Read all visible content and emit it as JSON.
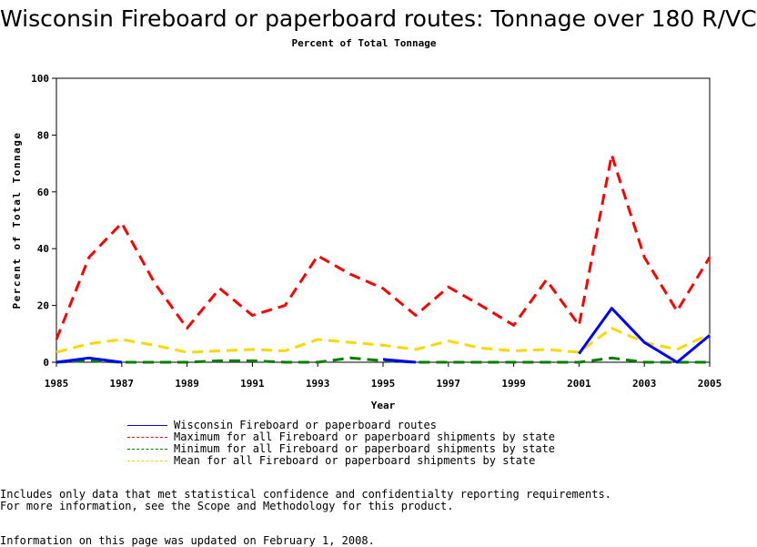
{
  "chart_data": {
    "type": "line",
    "title": "Wisconsin Fireboard or paperboard routes: Tonnage over 180 R/VC",
    "subtitle": "Percent of Total Tonnage",
    "xlabel": "Year",
    "ylabel": "Percent of Total Tonnage",
    "xlim": [
      1985,
      2005
    ],
    "ylim": [
      0,
      100
    ],
    "x_ticks": [
      "1985",
      "1987",
      "1989",
      "1991",
      "1993",
      "1995",
      "1997",
      "1999",
      "2001",
      "2003",
      "2005"
    ],
    "y_ticks": [
      "0",
      "20",
      "40",
      "60",
      "80",
      "100"
    ],
    "grid": false,
    "legend_position": "bottom",
    "x": [
      1985,
      1986,
      1987,
      1988,
      1989,
      1990,
      1991,
      1992,
      1993,
      1994,
      1995,
      1996,
      1997,
      1998,
      1999,
      2000,
      2001,
      2002,
      2003,
      2004,
      2005
    ],
    "series": [
      {
        "name": "Wisconsin Fireboard or paperboard routes",
        "color": "#0000ff",
        "style": "solid",
        "values": [
          0,
          1.5,
          0,
          null,
          null,
          null,
          null,
          null,
          null,
          null,
          1,
          0,
          null,
          null,
          null,
          null,
          3,
          19,
          7,
          0,
          9.5
        ]
      },
      {
        "name": "Maximum for all Fireboard or paperboard shipments by state",
        "color": "#ff0000",
        "style": "dashed",
        "values": [
          8,
          37,
          49,
          28,
          12,
          26,
          16.5,
          20,
          37.5,
          31,
          26,
          16.5,
          26.5,
          20,
          13,
          29,
          13,
          73,
          37,
          18,
          37
        ]
      },
      {
        "name": "Minimum for all Fireboard or paperboard shipments by state",
        "color": "#008000",
        "style": "dashed",
        "values": [
          0,
          0.5,
          0,
          0,
          0,
          0.5,
          0.5,
          0,
          0,
          1.5,
          0.5,
          0,
          0,
          0,
          0,
          0,
          0,
          1.5,
          0,
          0,
          0
        ]
      },
      {
        "name": "Mean for all Fireboard or paperboard shipments by state",
        "color": "#ffd700",
        "style": "dashed",
        "values": [
          3.5,
          6.5,
          8,
          6,
          3.5,
          4,
          4.5,
          4,
          8,
          7,
          6,
          4.5,
          7.5,
          5,
          4,
          4.5,
          3.5,
          12,
          7,
          4.5,
          10
        ]
      }
    ]
  },
  "notes": {
    "line1": "Includes only data that met statistical confidence and confidentialty reporting requirements.",
    "line2": "For more information, see the Scope and Methodology for this product.",
    "updated": "Information on this page was updated on February 1, 2008."
  }
}
